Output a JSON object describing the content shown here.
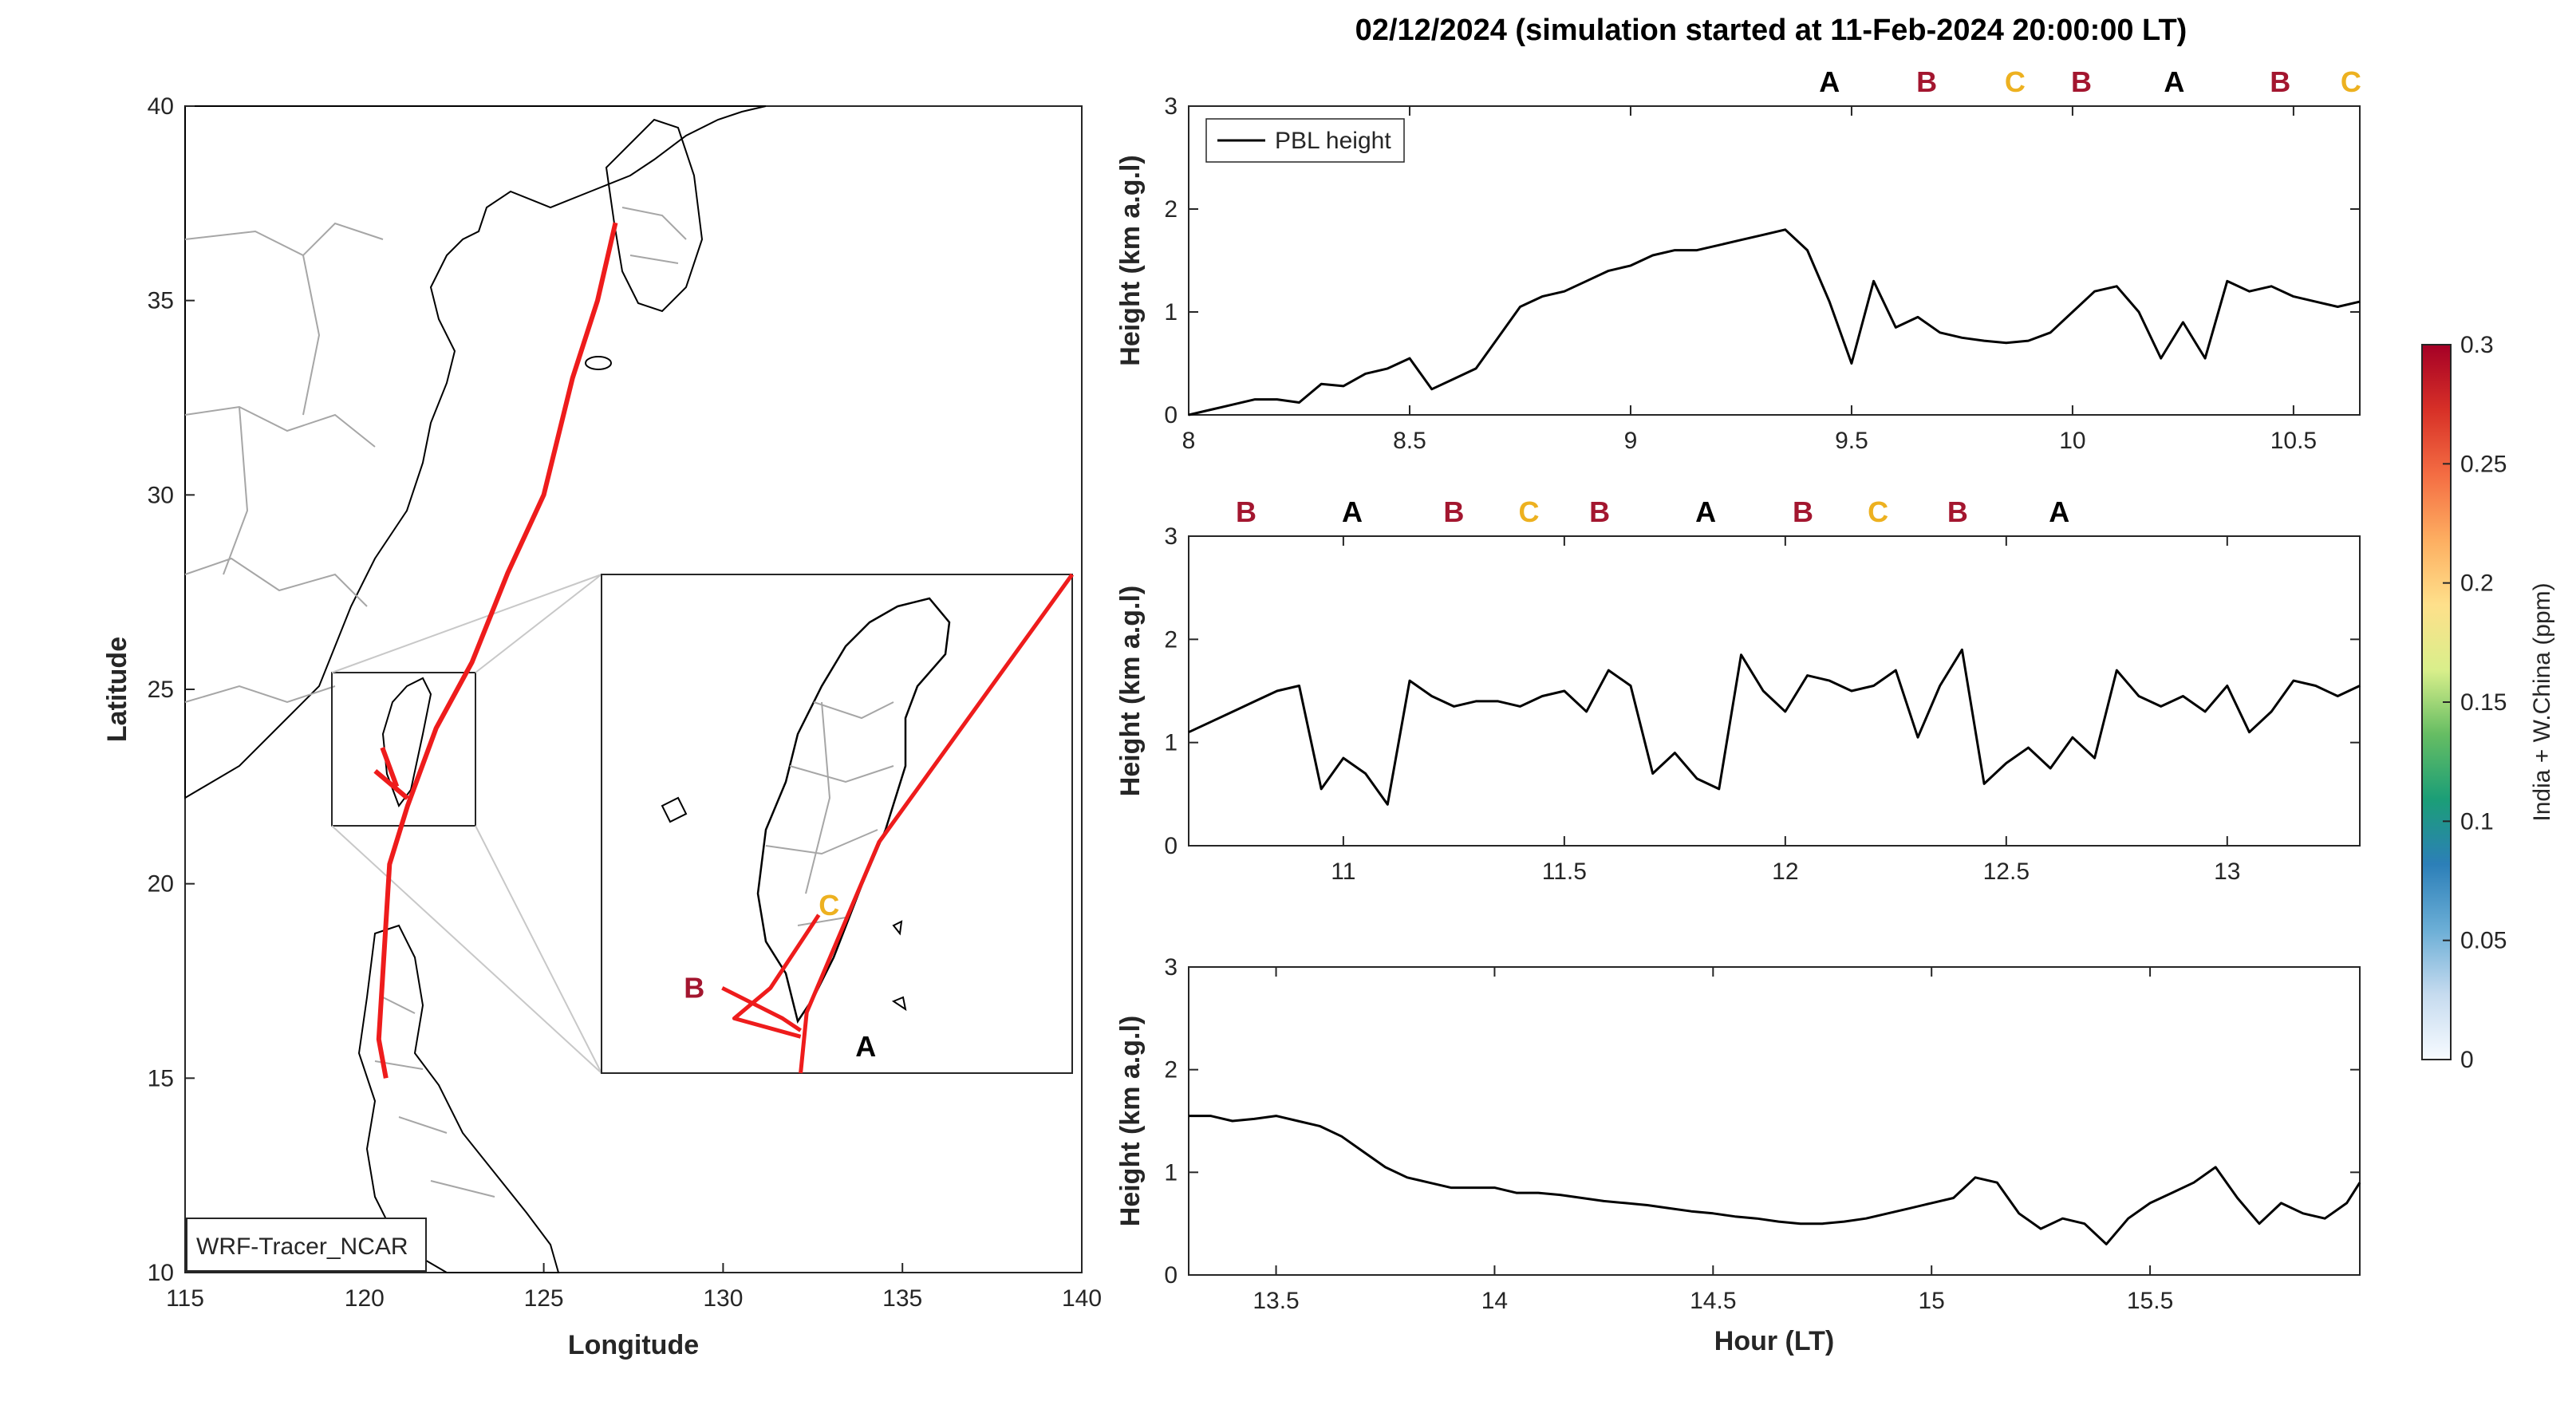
{
  "figure": {
    "title": "02/12/2024 (simulation started at 11-Feb-2024 20:00:00 LT)",
    "colors": {
      "track": "#ee1c1c",
      "segA": "#000000",
      "segB": "#a3162f",
      "segC": "#edb120",
      "coast": "#000000",
      "border": "#a6a6a6",
      "pbl_line": "#000000"
    }
  },
  "chart_data": [
    {
      "type": "line",
      "name": "map",
      "xlabel": "Longitude",
      "ylabel": "Latitude",
      "xlim": [
        115,
        140
      ],
      "ylim": [
        10,
        40
      ],
      "xticks": [
        "115",
        "120",
        "125",
        "130",
        "135",
        "140"
      ],
      "yticks": [
        "10",
        "15",
        "20",
        "25",
        "30",
        "35",
        "40"
      ],
      "label_box": "WRF-Tracer_NCAR",
      "track": {
        "lon": [
          127.0,
          126.5,
          125.8,
          125.0,
          124.0,
          123.0,
          122.0,
          121.2,
          120.7,
          120.6,
          120.5,
          120.4,
          120.5,
          120.6
        ],
        "lat": [
          37.0,
          35.0,
          33.0,
          30.0,
          28.0,
          25.7,
          24.0,
          22.0,
          20.5,
          19.0,
          17.5,
          16.0,
          15.5,
          15.0
        ]
      },
      "inset": {
        "lon_range": [
          119.2,
          123.1
        ],
        "lat_range": [
          21.5,
          25.6
        ],
        "markers": [
          {
            "label": "C",
            "lon": 121.0,
            "lat": 22.8
          },
          {
            "label": "B",
            "lon": 120.2,
            "lat": 22.2
          },
          {
            "label": "A",
            "lon": 121.7,
            "lat": 21.9
          }
        ]
      }
    },
    {
      "type": "line",
      "name": "panel-1",
      "ylabel": "Height (km a.g.l)",
      "xlim": [
        8.0,
        10.65
      ],
      "ylim": [
        0,
        3
      ],
      "xticks": [
        8,
        8.5,
        9,
        9.5,
        10,
        10.5
      ],
      "yticks": [
        0,
        1,
        2,
        3
      ],
      "legend": "PBL height",
      "segments": [
        {
          "label": "A",
          "x": 9.45
        },
        {
          "label": "B",
          "x": 9.67
        },
        {
          "label": "C",
          "x": 9.87
        },
        {
          "label": "B",
          "x": 10.02
        },
        {
          "label": "A",
          "x": 10.23
        },
        {
          "label": "B",
          "x": 10.47
        },
        {
          "label": "C",
          "x": 10.63
        }
      ],
      "x": [
        8.0,
        8.05,
        8.1,
        8.15,
        8.2,
        8.25,
        8.3,
        8.35,
        8.4,
        8.45,
        8.5,
        8.55,
        8.6,
        8.65,
        8.7,
        8.75,
        8.8,
        8.85,
        8.9,
        8.95,
        9.0,
        9.05,
        9.1,
        9.15,
        9.2,
        9.25,
        9.3,
        9.35,
        9.4,
        9.45,
        9.5,
        9.55,
        9.6,
        9.65,
        9.7,
        9.75,
        9.8,
        9.85,
        9.9,
        9.95,
        10.0,
        10.05,
        10.1,
        10.15,
        10.2,
        10.25,
        10.3,
        10.35,
        10.4,
        10.45,
        10.5,
        10.55,
        10.6,
        10.65
      ],
      "y": [
        0.0,
        0.05,
        0.1,
        0.15,
        0.15,
        0.12,
        0.3,
        0.28,
        0.4,
        0.45,
        0.55,
        0.25,
        0.35,
        0.45,
        0.75,
        1.05,
        1.15,
        1.2,
        1.3,
        1.4,
        1.45,
        1.55,
        1.6,
        1.6,
        1.65,
        1.7,
        1.75,
        1.8,
        1.6,
        1.1,
        0.5,
        1.3,
        0.85,
        0.95,
        0.8,
        0.75,
        0.72,
        0.7,
        0.72,
        0.8,
        1.0,
        1.2,
        1.25,
        1.0,
        0.55,
        0.9,
        0.55,
        1.3,
        1.2,
        1.25,
        1.15,
        1.1,
        1.05,
        1.1
      ]
    },
    {
      "type": "line",
      "name": "panel-2",
      "ylabel": "Height (km a.g.l)",
      "xlim": [
        10.65,
        13.3
      ],
      "ylim": [
        0,
        3
      ],
      "xticks": [
        11,
        11.5,
        12,
        12.5,
        13
      ],
      "yticks": [
        0,
        1,
        2,
        3
      ],
      "segments": [
        {
          "label": "B",
          "x": 10.78
        },
        {
          "label": "A",
          "x": 11.02
        },
        {
          "label": "B",
          "x": 11.25
        },
        {
          "label": "C",
          "x": 11.42
        },
        {
          "label": "B",
          "x": 11.58
        },
        {
          "label": "A",
          "x": 11.82
        },
        {
          "label": "B",
          "x": 12.04
        },
        {
          "label": "C",
          "x": 12.21
        },
        {
          "label": "B",
          "x": 12.39
        },
        {
          "label": "A",
          "x": 12.62
        }
      ],
      "x": [
        10.65,
        10.7,
        10.75,
        10.8,
        10.85,
        10.9,
        10.95,
        11.0,
        11.05,
        11.1,
        11.15,
        11.2,
        11.25,
        11.3,
        11.35,
        11.4,
        11.45,
        11.5,
        11.55,
        11.6,
        11.65,
        11.7,
        11.75,
        11.8,
        11.85,
        11.9,
        11.95,
        12.0,
        12.05,
        12.1,
        12.15,
        12.2,
        12.25,
        12.3,
        12.35,
        12.4,
        12.45,
        12.5,
        12.55,
        12.6,
        12.65,
        12.7,
        12.75,
        12.8,
        12.85,
        12.9,
        12.95,
        13.0,
        13.05,
        13.1,
        13.15,
        13.2,
        13.25,
        13.3
      ],
      "y": [
        1.1,
        1.2,
        1.3,
        1.4,
        1.5,
        1.55,
        0.55,
        0.85,
        0.7,
        0.4,
        1.6,
        1.45,
        1.35,
        1.4,
        1.4,
        1.35,
        1.45,
        1.5,
        1.3,
        1.7,
        1.55,
        0.7,
        0.9,
        0.65,
        0.55,
        1.85,
        1.5,
        1.3,
        1.65,
        1.6,
        1.5,
        1.55,
        1.7,
        1.05,
        1.55,
        1.9,
        0.6,
        0.8,
        0.95,
        0.75,
        1.05,
        0.85,
        1.7,
        1.45,
        1.35,
        1.45,
        1.3,
        1.55,
        1.1,
        1.3,
        1.6,
        1.55,
        1.45,
        1.55
      ]
    },
    {
      "type": "line",
      "name": "panel-3",
      "ylabel": "Height (km a.g.l)",
      "xlabel": "Hour (LT)",
      "xlim": [
        13.3,
        15.98
      ],
      "ylim": [
        0,
        3
      ],
      "xticks": [
        13.5,
        14,
        14.5,
        15,
        15.5
      ],
      "yticks": [
        0,
        1,
        2,
        3
      ],
      "x": [
        13.3,
        13.35,
        13.4,
        13.45,
        13.5,
        13.55,
        13.6,
        13.65,
        13.7,
        13.75,
        13.8,
        13.85,
        13.9,
        13.95,
        14.0,
        14.05,
        14.1,
        14.15,
        14.2,
        14.25,
        14.3,
        14.35,
        14.4,
        14.45,
        14.5,
        14.55,
        14.6,
        14.65,
        14.7,
        14.75,
        14.8,
        14.85,
        14.9,
        14.95,
        15.0,
        15.05,
        15.1,
        15.15,
        15.2,
        15.25,
        15.3,
        15.35,
        15.4,
        15.45,
        15.5,
        15.55,
        15.6,
        15.65,
        15.7,
        15.75,
        15.8,
        15.85,
        15.9,
        15.95,
        15.98
      ],
      "y": [
        1.55,
        1.55,
        1.5,
        1.52,
        1.55,
        1.5,
        1.45,
        1.35,
        1.2,
        1.05,
        0.95,
        0.9,
        0.85,
        0.85,
        0.85,
        0.8,
        0.8,
        0.78,
        0.75,
        0.72,
        0.7,
        0.68,
        0.65,
        0.62,
        0.6,
        0.57,
        0.55,
        0.52,
        0.5,
        0.5,
        0.52,
        0.55,
        0.6,
        0.65,
        0.7,
        0.75,
        0.95,
        0.9,
        0.6,
        0.45,
        0.55,
        0.5,
        0.3,
        0.55,
        0.7,
        0.8,
        0.9,
        1.05,
        0.75,
        0.5,
        0.7,
        0.6,
        0.55,
        0.7,
        0.9
      ]
    }
  ],
  "colorbar": {
    "label": "India + W.China (ppm)",
    "ticks": [
      "0",
      "0.05",
      "0.1",
      "0.15",
      "0.2",
      "0.25",
      "0.3"
    ],
    "colors": [
      "#f7fbff",
      "#c6dbef",
      "#6baed6",
      "#2c7fb8",
      "#1b9e77",
      "#66bd63",
      "#d9ef8b",
      "#fee08b",
      "#fdae61",
      "#f46d43",
      "#d73027",
      "#a50026"
    ]
  }
}
